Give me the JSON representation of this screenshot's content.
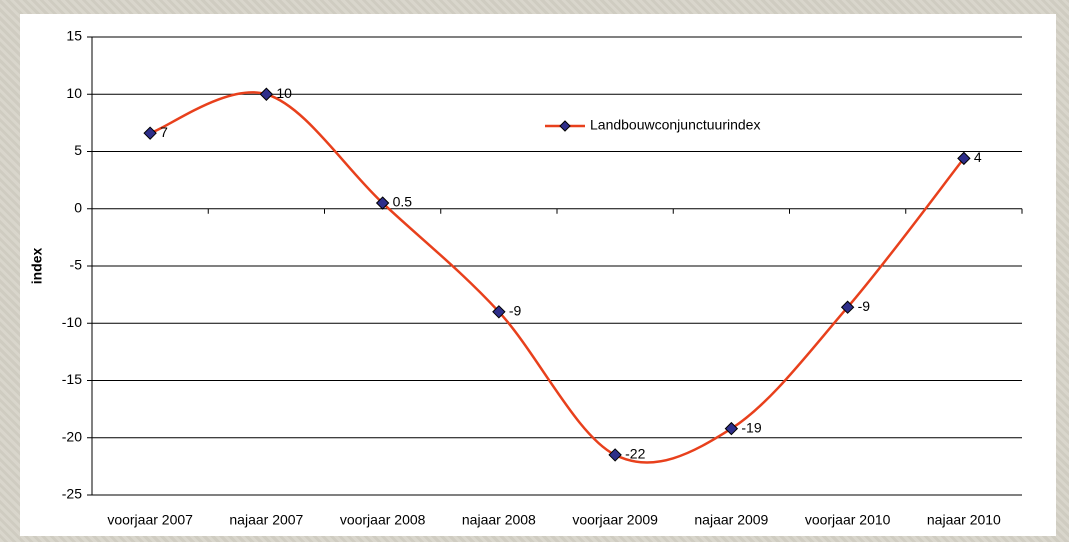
{
  "chart_data": {
    "type": "line",
    "y_label": "index",
    "categories": [
      "voorjaar 2007",
      "najaar 2007",
      "voorjaar 2008",
      "najaar 2008",
      "voorjaar 2009",
      "najaar 2009",
      "voorjaar 2010",
      "najaar 2010"
    ],
    "series": [
      {
        "name": "Landbouwconjunctuurindex",
        "color": "#e8401c",
        "marker_color": "#2e2e8a",
        "values": [
          6.6,
          10,
          0.5,
          -9,
          -21.5,
          -19.2,
          -8.6,
          4.4
        ],
        "value_labels": [
          "7",
          "10",
          "0.5",
          "-9",
          "-22",
          "-19",
          "-9",
          "4"
        ]
      }
    ],
    "ylim": [
      -25,
      15
    ],
    "yticks": [
      -25,
      -20,
      -15,
      -10,
      -5,
      0,
      5,
      10,
      15
    ],
    "grid": true,
    "smooth": true,
    "legend": "top"
  }
}
